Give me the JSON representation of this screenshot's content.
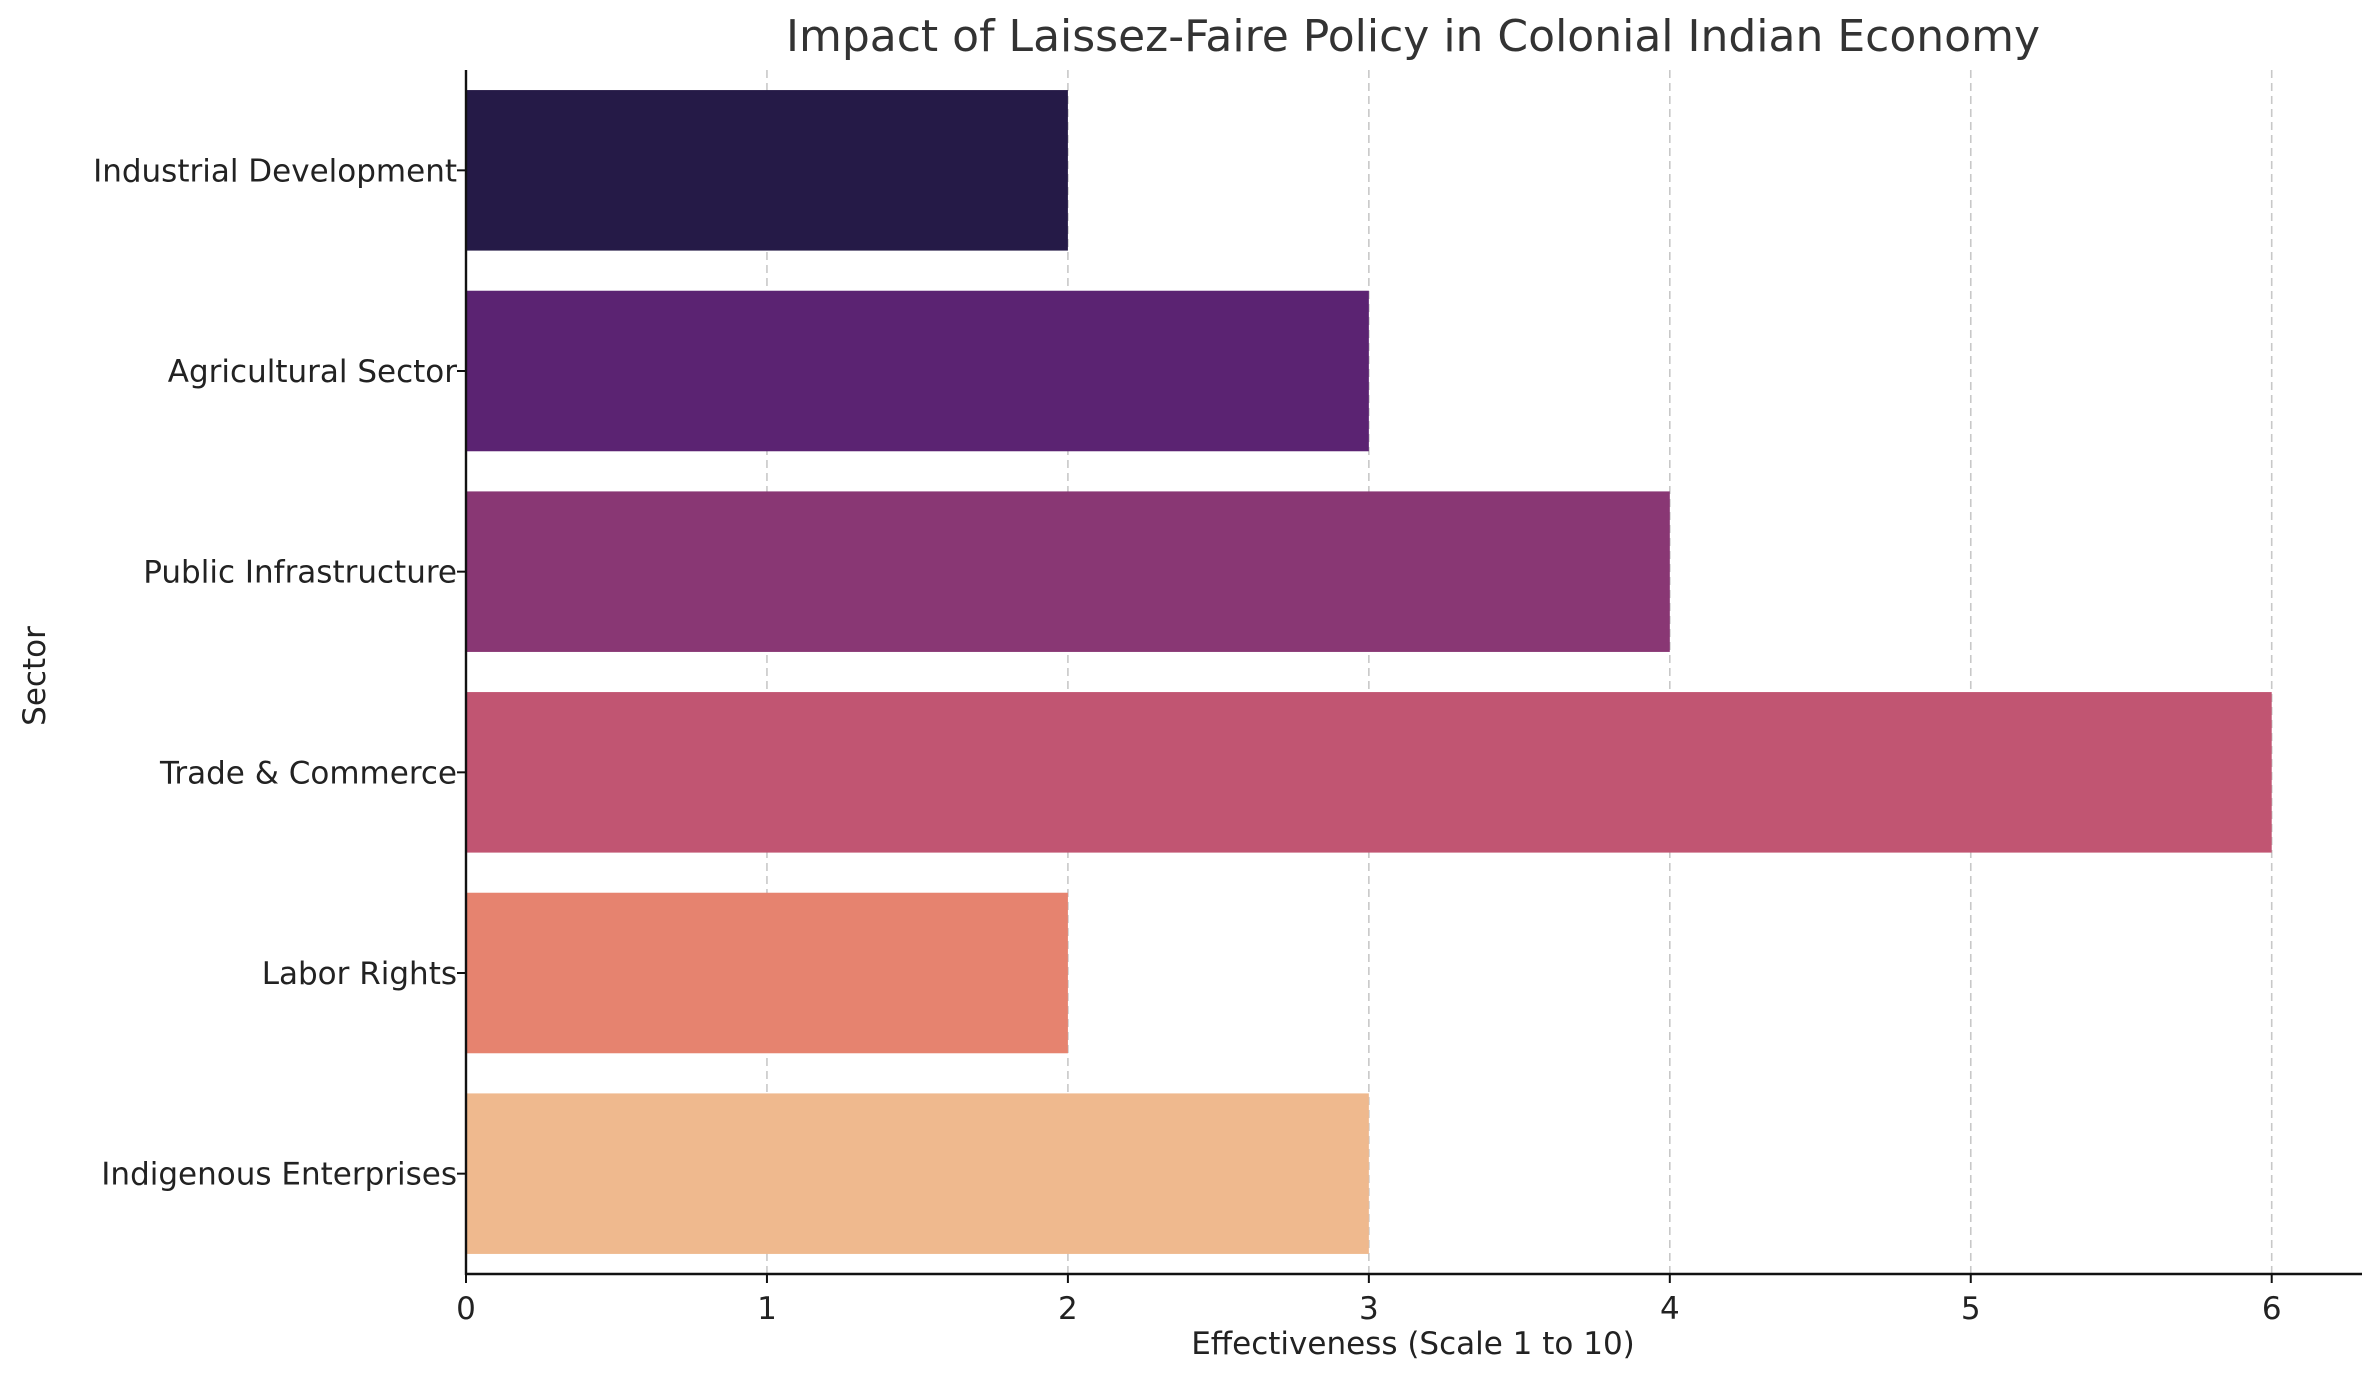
{
  "chart_data": {
    "type": "bar",
    "orientation": "horizontal",
    "title": "Impact of Laissez-Faire Policy in Colonial Indian Economy",
    "xlabel": "Effectiveness (Scale 1 to 10)",
    "ylabel": "Sector",
    "categories": [
      "Industrial Development",
      "Agricultural Sector",
      "Public Infrastructure",
      "Trade & Commerce",
      "Labor Rights",
      "Indigenous Enterprises"
    ],
    "values": [
      2,
      3,
      4,
      6,
      2,
      3
    ],
    "colors": [
      "#251a47",
      "#5b2372",
      "#893774",
      "#c15572",
      "#e6836f",
      "#efb98e"
    ],
    "xlim": [
      0,
      6.3
    ],
    "xticks": [
      0,
      1,
      2,
      3,
      4,
      5,
      6
    ],
    "grid": "vertical dashed",
    "legend": "none"
  }
}
